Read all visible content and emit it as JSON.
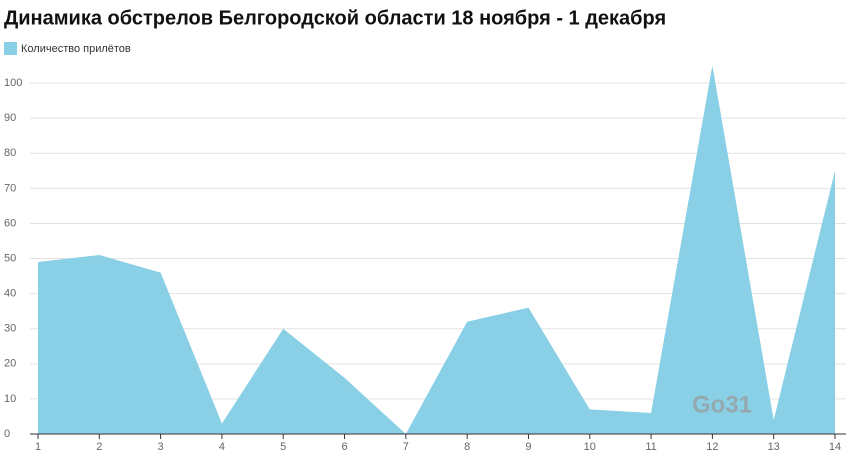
{
  "chart_data": {
    "type": "area",
    "title": "Динамика обстрелов Белгородской области 18 ноября - 1 декабря",
    "x": [
      1,
      2,
      3,
      4,
      5,
      6,
      7,
      8,
      9,
      10,
      11,
      12,
      13,
      14
    ],
    "series": [
      {
        "name": "Количество прилётов",
        "color": "#89cfe6",
        "values": [
          49,
          51,
          46,
          3,
          30,
          16,
          0,
          32,
          36,
          7,
          6,
          105,
          4,
          75
        ]
      }
    ],
    "xlim": [
      1,
      14
    ],
    "xticks": [
      1,
      2,
      3,
      4,
      5,
      6,
      7,
      8,
      9,
      10,
      11,
      12,
      13,
      14
    ],
    "ylim": [
      0,
      110
    ],
    "yticks": [
      0,
      10,
      20,
      30,
      40,
      50,
      60,
      70,
      80,
      90,
      100
    ],
    "grid": true,
    "legend": "top-left",
    "watermark": "Go31"
  }
}
